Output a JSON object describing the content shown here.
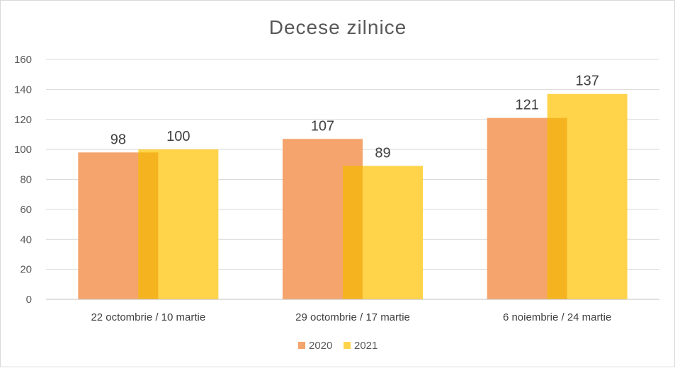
{
  "chart_data": {
    "type": "bar",
    "title": "Decese zilnice",
    "categories": [
      "22 octombrie  / 10 martie",
      "29 octombrie  / 17 martie",
      "6 noiembrie  / 24 martie"
    ],
    "series": [
      {
        "name": "2020",
        "values": [
          98,
          107,
          121
        ],
        "color": "#f4a46c"
      },
      {
        "name": "2021",
        "values": [
          100,
          89,
          137
        ],
        "color": "#ffd44a"
      }
    ],
    "overlap_color": "#f5b320",
    "ylim": [
      0,
      160
    ],
    "yticks": [
      0,
      20,
      40,
      60,
      80,
      100,
      120,
      140,
      160
    ],
    "grid": true,
    "legend": "bottom"
  }
}
